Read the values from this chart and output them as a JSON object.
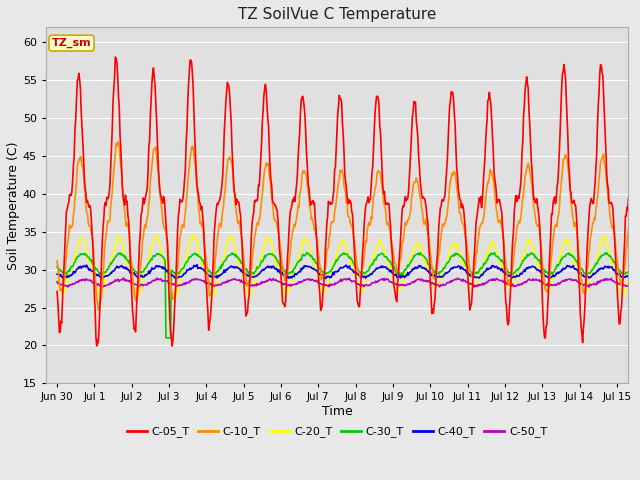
{
  "title": "TZ SoilVue C Temperature",
  "xlabel": "Time",
  "ylabel": "Soil Temperature (C)",
  "ylim": [
    15,
    62
  ],
  "yticks": [
    15,
    20,
    25,
    30,
    35,
    40,
    45,
    50,
    55,
    60
  ],
  "x_start_day": -0.3,
  "x_end_day": 15.3,
  "x_tick_labels": [
    "Jun 30",
    "Jul 1",
    "Jul 2",
    "Jul 3",
    "Jul 4",
    "Jul 5",
    "Jul 6",
    "Jul 7",
    "Jul 8",
    "Jul 9",
    "Jul 10",
    "Jul 11",
    "Jul 12",
    "Jul 13",
    "Jul 14",
    "Jul 15"
  ],
  "x_tick_positions": [
    0,
    1,
    2,
    3,
    4,
    5,
    6,
    7,
    8,
    9,
    10,
    11,
    12,
    13,
    14,
    15
  ],
  "fig_bg_color": "#e8e8e8",
  "plot_bg_color": "#e0e0e0",
  "grid_color": "#ffffff",
  "series_colors": {
    "C-05_T": "#ff0000",
    "C-10_T": "#ff8c00",
    "C-20_T": "#ffff00",
    "C-30_T": "#00cc00",
    "C-40_T": "#0000ee",
    "C-50_T": "#bb00bb"
  },
  "linewidth": 1.2,
  "annotation_text": "TZ_sm",
  "annotation_color": "#cc0000",
  "annotation_bg": "#ffffcc",
  "annotation_edge": "#ccaa00"
}
